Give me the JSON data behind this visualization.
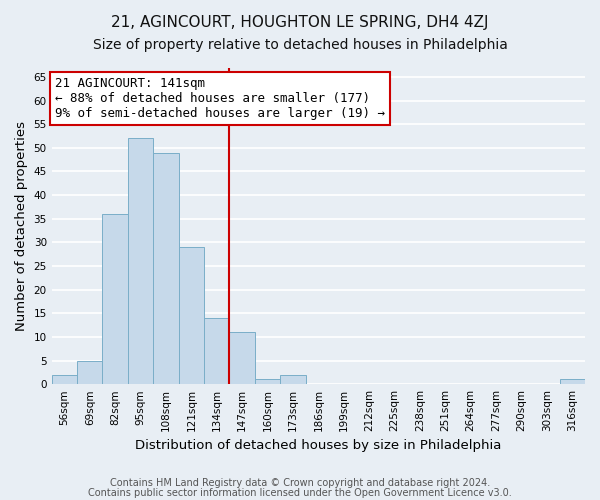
{
  "title_line1": "21, AGINCOURT, HOUGHTON LE SPRING, DH4 4ZJ",
  "title_line2": "Size of property relative to detached houses in Philadelphia",
  "xlabel": "Distribution of detached houses by size in Philadelphia",
  "ylabel": "Number of detached properties",
  "footer_line1": "Contains HM Land Registry data © Crown copyright and database right 2024.",
  "footer_line2": "Contains public sector information licensed under the Open Government Licence v3.0.",
  "bin_labels": [
    "56sqm",
    "69sqm",
    "82sqm",
    "95sqm",
    "108sqm",
    "121sqm",
    "134sqm",
    "147sqm",
    "160sqm",
    "173sqm",
    "186sqm",
    "199sqm",
    "212sqm",
    "225sqm",
    "238sqm",
    "251sqm",
    "264sqm",
    "277sqm",
    "290sqm",
    "303sqm",
    "316sqm"
  ],
  "bar_heights": [
    2,
    5,
    36,
    52,
    49,
    29,
    14,
    11,
    1,
    2,
    0,
    0,
    0,
    0,
    0,
    0,
    0,
    0,
    0,
    0,
    1
  ],
  "bar_color": "#c6d9ea",
  "bar_edge_color": "#7aaec8",
  "vline_x_index": 7,
  "vline_color": "#cc0000",
  "annotation_title": "21 AGINCOURT: 141sqm",
  "annotation_line1": "← 88% of detached houses are smaller (177)",
  "annotation_line2": "9% of semi-detached houses are larger (19) →",
  "annotation_box_color": "#ffffff",
  "annotation_box_edge_color": "#cc0000",
  "ylim": [
    0,
    67
  ],
  "yticks": [
    0,
    5,
    10,
    15,
    20,
    25,
    30,
    35,
    40,
    45,
    50,
    55,
    60,
    65
  ],
  "background_color": "#e8eef4",
  "grid_color": "#ffffff",
  "title_fontsize": 11,
  "subtitle_fontsize": 10,
  "axis_label_fontsize": 9.5,
  "tick_fontsize": 7.5,
  "footer_fontsize": 7,
  "annotation_fontsize": 9
}
